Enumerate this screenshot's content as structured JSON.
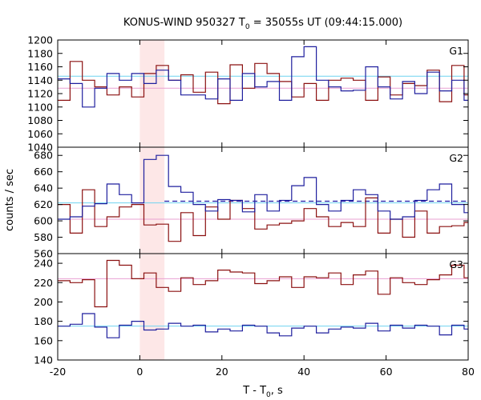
{
  "chart_data": {
    "type": "line",
    "title_main": "KONUS-WIND 950327 T",
    "title_sub": "0",
    "title_rest": " = 35055s UT (09:44:15.000)",
    "xlabel_main": "T - T",
    "xlabel_sub": "0",
    "xlabel_rest": ", s",
    "ylabel": "counts / sec",
    "xlim": [
      -20,
      80
    ],
    "xticks": [
      -20,
      0,
      20,
      40,
      60,
      80
    ],
    "shaded_interval": [
      0,
      6
    ],
    "bin_edges": [
      -20,
      -17,
      -14,
      -11,
      -8,
      -5,
      -2,
      1,
      4,
      7,
      10,
      13,
      16,
      19,
      22,
      25,
      28,
      31,
      34,
      37,
      40,
      43,
      46,
      49,
      52,
      55,
      58,
      61,
      64,
      67,
      70,
      73,
      76,
      79,
      80
    ],
    "colors": {
      "series1": "#1f1f9e",
      "series2": "#8b1010",
      "cyan": "#6fd3f0",
      "pink": "#e9a0d2",
      "dashed": "#1a1aa8",
      "shade": "#fde7e7"
    },
    "panels": [
      {
        "label": "G1",
        "ylim": [
          1040,
          1200
        ],
        "yticks": [
          1040,
          1060,
          1080,
          1100,
          1120,
          1140,
          1160,
          1180,
          1200
        ],
        "series1": [
          1142,
          1135,
          1100,
          1128,
          1150,
          1140,
          1150,
          1135,
          1155,
          1140,
          1118,
          1118,
          1112,
          1142,
          1110,
          1150,
          1130,
          1138,
          1110,
          1175,
          1190,
          1140,
          1130,
          1124,
          1125,
          1160,
          1130,
          1112,
          1138,
          1120,
          1152,
          1124,
          1140,
          1110
        ],
        "series2": [
          1110,
          1168,
          1140,
          1130,
          1118,
          1130,
          1115,
          1150,
          1162,
          1140,
          1148,
          1122,
          1152,
          1105,
          1163,
          1128,
          1165,
          1150,
          1138,
          1115,
          1135,
          1110,
          1140,
          1143,
          1140,
          1110,
          1145,
          1118,
          1135,
          1132,
          1155,
          1108,
          1162,
          1118
        ],
        "ref_cyan": 1146,
        "ref_pink": 1128
      },
      {
        "label": "G2",
        "ylim": [
          560,
          690
        ],
        "yticks": [
          560,
          580,
          600,
          620,
          640,
          660,
          680
        ],
        "series1": [
          602,
          605,
          618,
          621,
          645,
          632,
          622,
          675,
          680,
          642,
          635,
          620,
          612,
          626,
          625,
          611,
          632,
          612,
          625,
          643,
          653,
          620,
          612,
          625,
          638,
          632,
          612,
          602,
          605,
          625,
          638,
          645,
          620,
          610
        ],
        "series2": [
          620,
          585,
          638,
          593,
          605,
          617,
          620,
          595,
          596,
          575,
          610,
          582,
          617,
          602,
          625,
          615,
          590,
          595,
          597,
          600,
          615,
          605,
          593,
          598,
          593,
          628,
          585,
          602,
          580,
          612,
          585,
          593,
          594,
          598
        ],
        "ref_cyan": 622,
        "ref_pink": 602,
        "ref_dashed": 624
      },
      {
        "label": "G3",
        "ylim": [
          140,
          250
        ],
        "yticks": [
          140,
          160,
          180,
          200,
          220,
          240
        ],
        "series1": [
          175,
          177,
          188,
          174,
          163,
          176,
          180,
          171,
          172,
          178,
          175,
          176,
          169,
          172,
          170,
          176,
          175,
          168,
          165,
          173,
          175,
          168,
          172,
          174,
          173,
          178,
          170,
          176,
          173,
          176,
          175,
          166,
          176,
          172
        ],
        "series2": [
          222,
          220,
          223,
          195,
          243,
          238,
          224,
          230,
          215,
          211,
          225,
          218,
          222,
          233,
          231,
          230,
          219,
          222,
          226,
          215,
          226,
          225,
          230,
          218,
          228,
          232,
          208,
          225,
          220,
          218,
          223,
          228,
          238,
          225
        ],
        "ref_cyan": 175,
        "ref_pink": 224
      }
    ]
  }
}
